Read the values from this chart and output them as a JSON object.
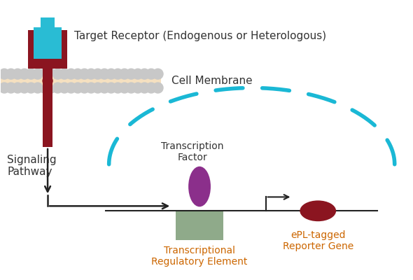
{
  "bg_color": "#ffffff",
  "receptor_colors": {
    "cyan": "#29bcd4",
    "dark_red": "#8b1520",
    "membrane_bg": "#f5e0c0",
    "membrane_circles": "#c8c8c8"
  },
  "text_labels": {
    "receptor": "Target Receptor (Endogenous or Heterologous)",
    "membrane": "Cell Membrane",
    "signaling": "Signaling\nPathway",
    "transcription_factor": "Transcription\nFactor",
    "regulatory_element": "Transcriptional\nRegulatory Element",
    "reporter_gene": "ePL-tagged\nReporter Gene"
  },
  "colors": {
    "tf_ellipse": "#8b2f8b",
    "regulatory_box": "#8faa8a",
    "reporter_ellipse": "#8b1520",
    "dashed_arc": "#1ab8d5",
    "arrow_color": "#222222",
    "label_color": "#333333",
    "orange_label": "#cc6600"
  },
  "figsize": [
    5.9,
    4.0
  ],
  "dpi": 100
}
